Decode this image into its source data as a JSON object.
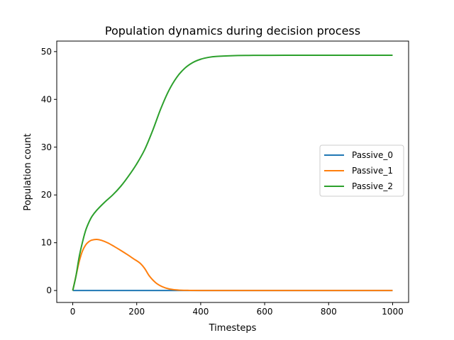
{
  "chart_data": {
    "type": "line",
    "title": "Population dynamics during decision process",
    "xlabel": "Timesteps",
    "ylabel": "Population count",
    "xlim": [
      -50,
      1050
    ],
    "ylim": [
      -2.5,
      52.2
    ],
    "xticks": [
      0,
      200,
      400,
      600,
      800,
      1000
    ],
    "yticks": [
      0,
      10,
      20,
      30,
      40,
      50
    ],
    "grid": false,
    "legend_position": "center-right",
    "series": [
      {
        "name": "Passive_0",
        "color": "#1f77b4",
        "x": [
          0,
          1000
        ],
        "y": [
          0,
          0
        ]
      },
      {
        "name": "Passive_1",
        "color": "#ff7f0e",
        "x": [
          0,
          10,
          20,
          30,
          40,
          50,
          60,
          75,
          90,
          110,
          130,
          150,
          170,
          190,
          210,
          225,
          240,
          260,
          280,
          300,
          320,
          340,
          360,
          400,
          500,
          600,
          700,
          800,
          900,
          1000
        ],
        "y": [
          0,
          3.0,
          6.0,
          8.2,
          9.5,
          10.2,
          10.55,
          10.7,
          10.5,
          9.95,
          9.2,
          8.4,
          7.55,
          6.65,
          5.75,
          4.6,
          3.0,
          1.6,
          0.8,
          0.35,
          0.15,
          0.06,
          0.03,
          0.01,
          0,
          0,
          0,
          0,
          0,
          0
        ]
      },
      {
        "name": "Passive_2",
        "color": "#2ca02c",
        "x": [
          0,
          10,
          20,
          30,
          40,
          50,
          60,
          75,
          100,
          125,
          150,
          175,
          200,
          225,
          250,
          275,
          300,
          325,
          350,
          375,
          400,
          425,
          450,
          500,
          550,
          600,
          700,
          800,
          900,
          1000
        ],
        "y": [
          0,
          3.0,
          7.0,
          10.0,
          12.5,
          14.2,
          15.5,
          16.8,
          18.5,
          20.0,
          21.8,
          24.0,
          26.5,
          29.5,
          33.5,
          38.0,
          41.8,
          44.6,
          46.5,
          47.7,
          48.4,
          48.8,
          49.0,
          49.15,
          49.2,
          49.22,
          49.23,
          49.23,
          49.23,
          49.23
        ]
      }
    ]
  }
}
